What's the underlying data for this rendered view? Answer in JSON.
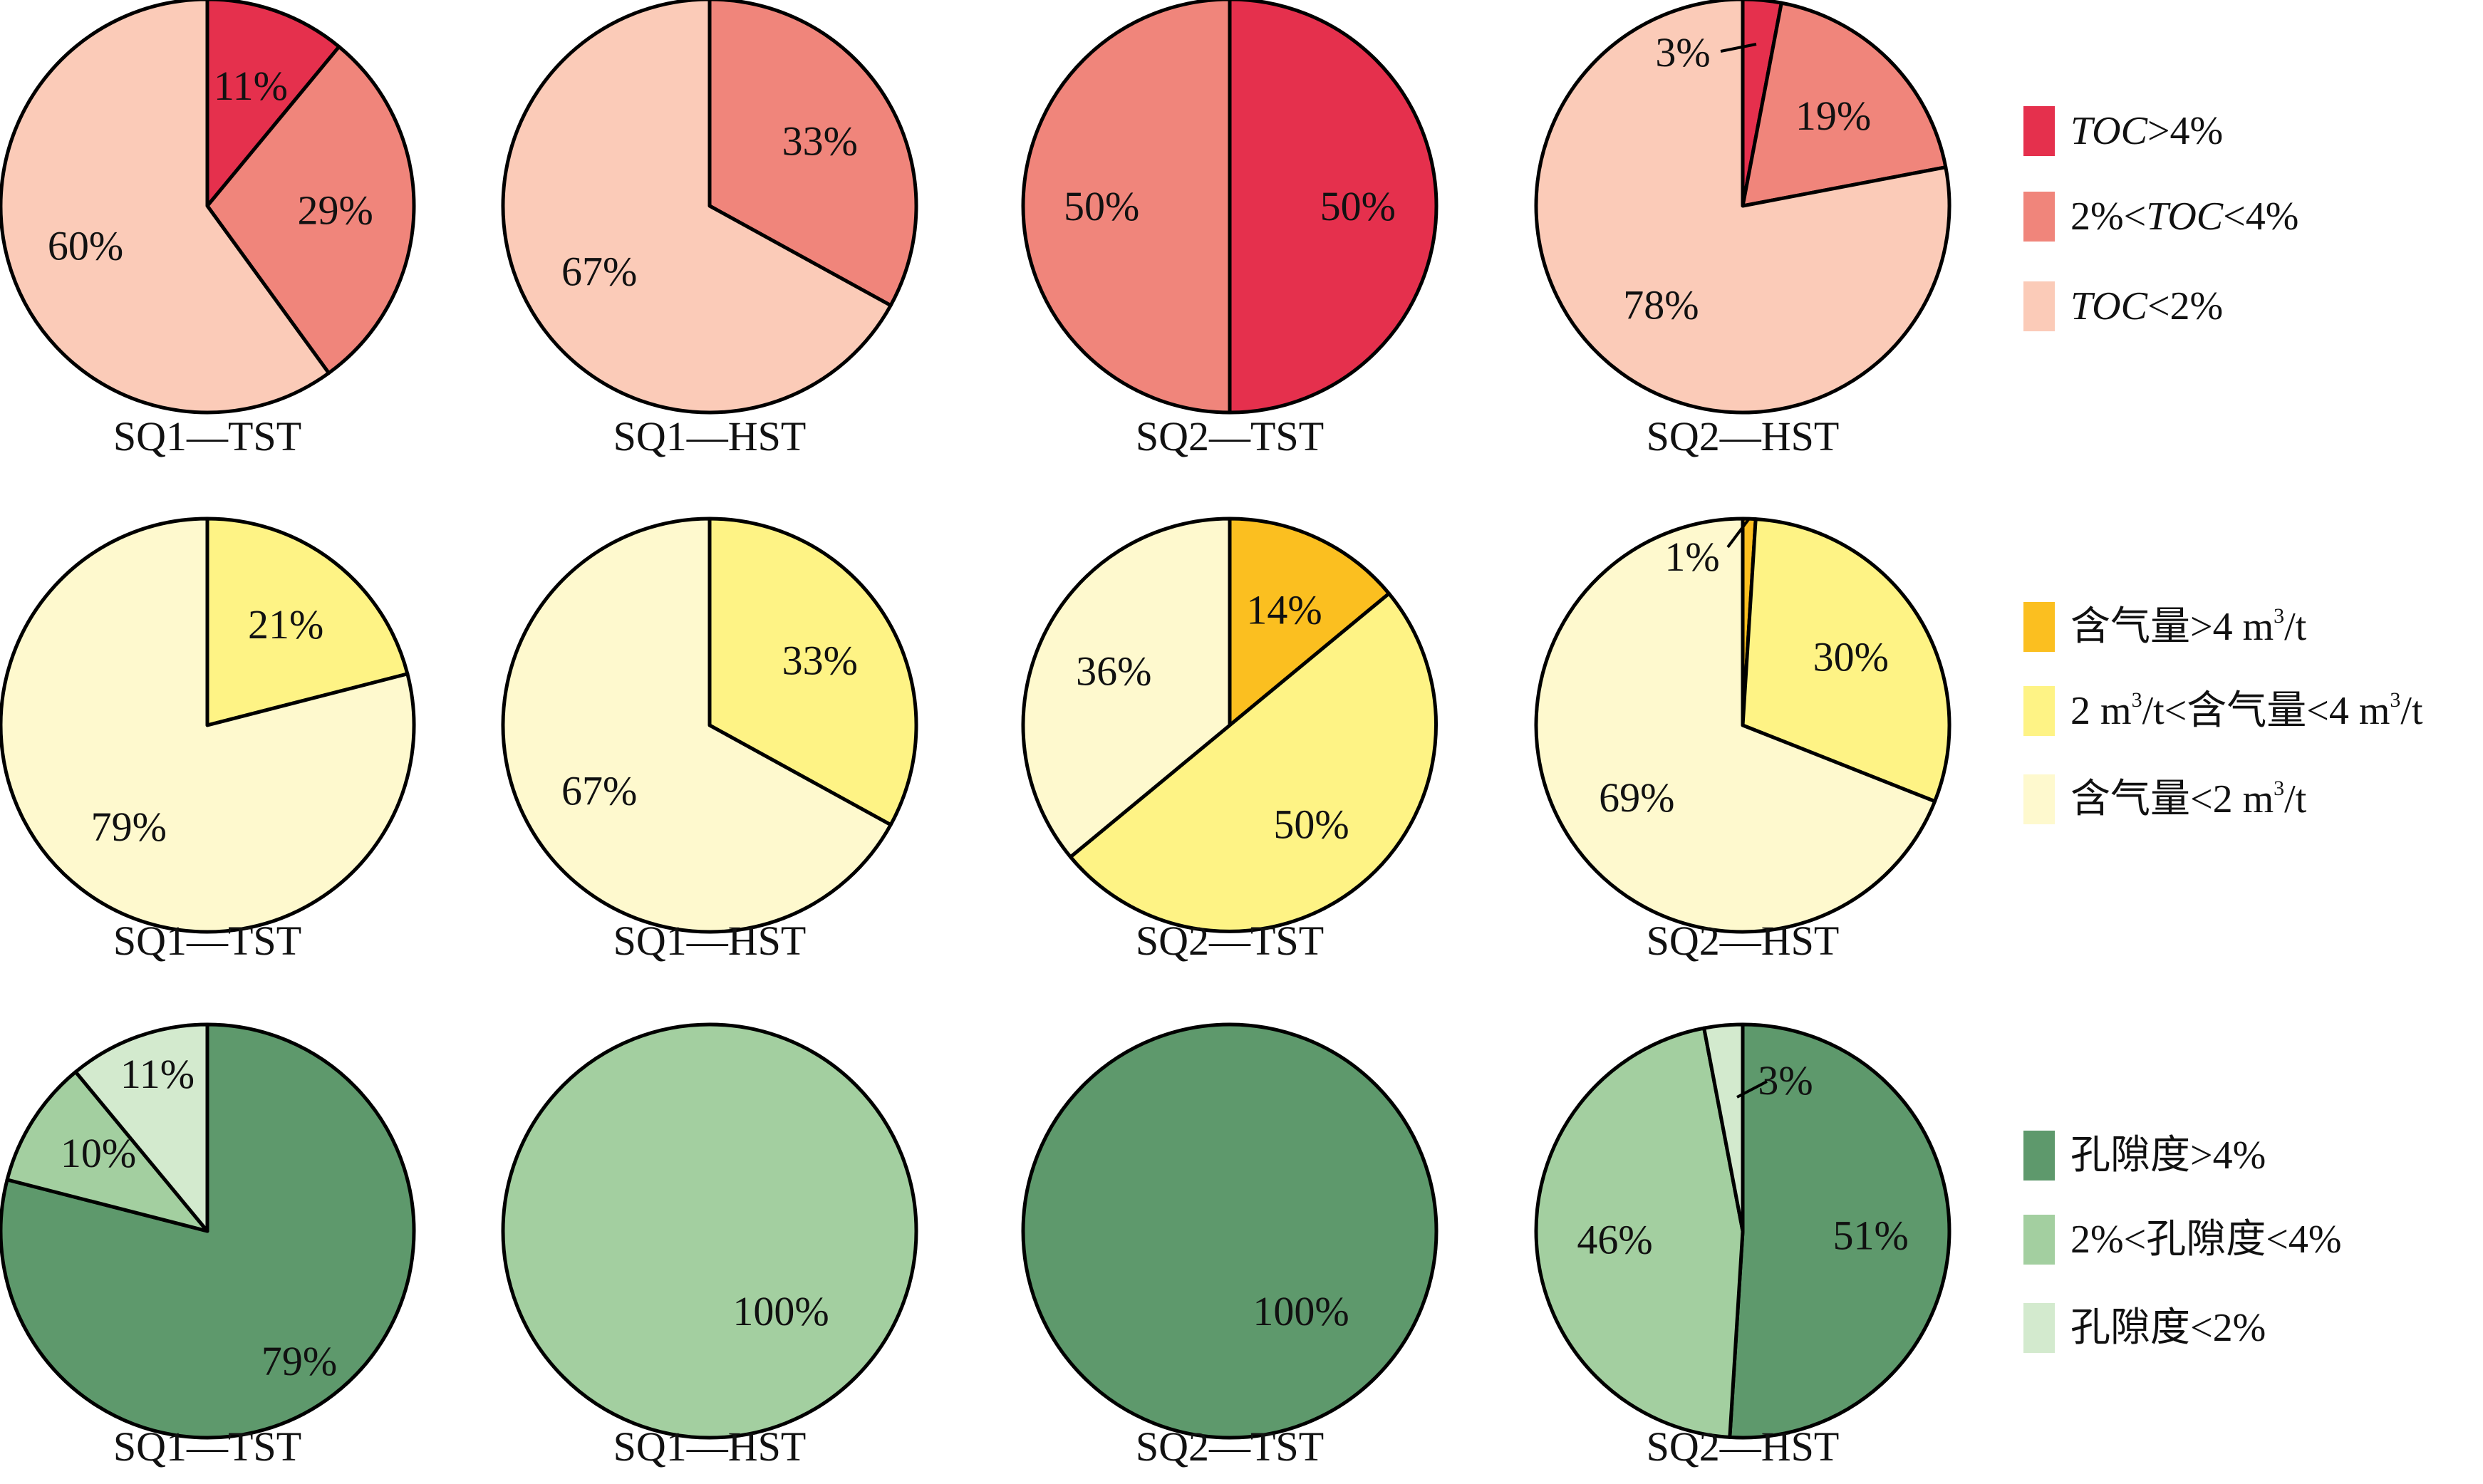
{
  "colors": {
    "toc": [
      "#E5304D",
      "#F0857B",
      "#FBCBB8"
    ],
    "gas": [
      "#FBBF20",
      "#FEF385",
      "#FEF9CE"
    ],
    "poro": [
      "#5E996C",
      "#A3CFA0",
      "#D3EACE"
    ]
  },
  "legends": [
    {
      "group": "toc",
      "entries": [
        {
          "color": "#E5304D",
          "parts": [
            [
              "TOC",
              "it"
            ],
            [
              ">4%",
              ""
            ]
          ]
        },
        {
          "color": "#F0857B",
          "parts": [
            [
              "2%<",
              ""
            ],
            [
              "TOC",
              "it"
            ],
            [
              "<4%",
              ""
            ]
          ]
        },
        {
          "color": "#FBCBB8",
          "parts": [
            [
              "TOC",
              "it"
            ],
            [
              "<2%",
              ""
            ]
          ]
        }
      ]
    },
    {
      "group": "gas",
      "entries": [
        {
          "color": "#FBBF20",
          "parts": [
            [
              "含气量>4 m",
              ""
            ],
            [
              "3",
              "sup"
            ],
            [
              "/t",
              ""
            ]
          ]
        },
        {
          "color": "#FEF385",
          "parts": [
            [
              "2 m",
              ""
            ],
            [
              "3",
              "sup"
            ],
            [
              "/t<含气量<4 m",
              ""
            ],
            [
              "3",
              "sup"
            ],
            [
              "/t",
              ""
            ]
          ]
        },
        {
          "color": "#FEF9CE",
          "parts": [
            [
              "含气量<2 m",
              ""
            ],
            [
              "3",
              "sup"
            ],
            [
              "/t",
              ""
            ]
          ]
        }
      ]
    },
    {
      "group": "poro",
      "entries": [
        {
          "color": "#5E996C",
          "parts": [
            [
              "孔隙度>4%",
              ""
            ]
          ]
        },
        {
          "color": "#A3CFA0",
          "parts": [
            [
              "2%<孔隙度<4%",
              ""
            ]
          ]
        },
        {
          "color": "#D3EACE",
          "parts": [
            [
              "孔隙度<2%",
              ""
            ]
          ]
        }
      ]
    }
  ],
  "chart_data": [
    {
      "type": "pie",
      "row": "toc",
      "title": "SQ1—TST",
      "categories": [
        "TOC>4%",
        "2%<TOC<4%",
        "TOC<2%"
      ],
      "values": [
        11,
        29,
        60
      ],
      "labels": [
        "11%",
        "29%",
        "60%"
      ]
    },
    {
      "type": "pie",
      "row": "toc",
      "title": "SQ1—HST",
      "categories": [
        "TOC>4%",
        "2%<TOC<4%",
        "TOC<2%"
      ],
      "values": [
        0,
        33,
        67
      ],
      "labels": [
        "",
        "33%",
        "67%"
      ]
    },
    {
      "type": "pie",
      "row": "toc",
      "title": "SQ2—TST",
      "categories": [
        "TOC>4%",
        "2%<TOC<4%",
        "TOC<2%"
      ],
      "values": [
        50,
        50,
        0
      ],
      "labels": [
        "50%",
        "50%",
        ""
      ]
    },
    {
      "type": "pie",
      "row": "toc",
      "title": "SQ2—HST",
      "categories": [
        "TOC>4%",
        "2%<TOC<4%",
        "TOC<2%"
      ],
      "values": [
        3,
        19,
        78
      ],
      "labels": [
        "3%",
        "19%",
        "78%"
      ]
    },
    {
      "type": "pie",
      "row": "gas",
      "title": "SQ1—TST",
      "categories": [
        "含气量>4 m3/t",
        "2 m3/t<含气量<4 m3/t",
        "含气量<2 m3/t"
      ],
      "values": [
        0,
        21,
        79
      ],
      "labels": [
        "",
        "21%",
        "79%"
      ]
    },
    {
      "type": "pie",
      "row": "gas",
      "title": "SQ1—HST",
      "categories": [
        "含气量>4 m3/t",
        "2 m3/t<含气量<4 m3/t",
        "含气量<2 m3/t"
      ],
      "values": [
        0,
        33,
        67
      ],
      "labels": [
        "",
        "33%",
        "67%"
      ]
    },
    {
      "type": "pie",
      "row": "gas",
      "title": "SQ2—TST",
      "categories": [
        "含气量>4 m3/t",
        "2 m3/t<含气量<4 m3/t",
        "含气量<2 m3/t"
      ],
      "values": [
        14,
        50,
        36
      ],
      "labels": [
        "14%",
        "50%",
        "36%"
      ]
    },
    {
      "type": "pie",
      "row": "gas",
      "title": "SQ2—HST",
      "categories": [
        "含气量>4 m3/t",
        "2 m3/t<含气量<4 m3/t",
        "含气量<2 m3/t"
      ],
      "values": [
        1,
        30,
        69
      ],
      "labels": [
        "1%",
        "30%",
        "69%"
      ]
    },
    {
      "type": "pie",
      "row": "poro",
      "title": "SQ1—TST",
      "categories": [
        "孔隙度>4%",
        "2%<孔隙度<4%",
        "孔隙度<2%"
      ],
      "values": [
        79,
        10,
        11
      ],
      "labels": [
        "79%",
        "10%",
        "11%"
      ]
    },
    {
      "type": "pie",
      "row": "poro",
      "title": "SQ1—HST",
      "categories": [
        "孔隙度>4%",
        "2%<孔隙度<4%",
        "孔隙度<2%"
      ],
      "values": [
        0,
        100,
        0
      ],
      "labels": [
        "",
        "100%",
        ""
      ]
    },
    {
      "type": "pie",
      "row": "poro",
      "title": "SQ2—TST",
      "categories": [
        "孔隙度>4%",
        "2%<孔隙度<4%",
        "孔隙度<2%"
      ],
      "values": [
        100,
        0,
        0
      ],
      "labels": [
        "100%",
        "",
        ""
      ]
    },
    {
      "type": "pie",
      "row": "poro",
      "title": "SQ2—HST",
      "categories": [
        "孔隙度>4%",
        "2%<孔隙度<4%",
        "孔隙度<2%"
      ],
      "values": [
        51,
        46,
        3
      ],
      "labels": [
        "51%",
        "46%",
        "3%"
      ]
    }
  ]
}
